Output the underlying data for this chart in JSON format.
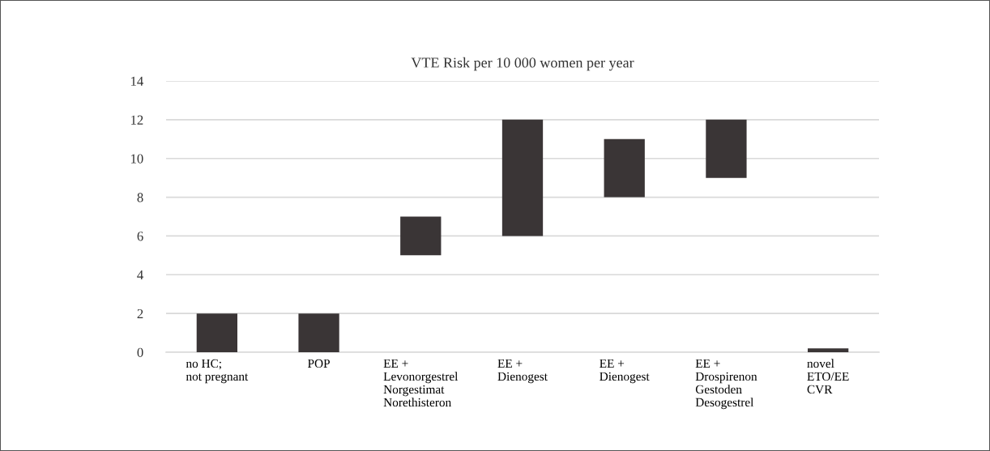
{
  "chart_data": {
    "type": "bar",
    "title": "VTE Risk per 10 000 women per year",
    "categories": [
      "no HC;\nnot pregnant",
      "POP",
      "EE +\nLevonorgestrel\nNorgestimat\nNorethisteron",
      "EE +\nDienogest",
      "EE +\nDienogest",
      "EE +\nDrospirenon\nGestoden\nDesogestrel",
      "novel\nETO/EE\nCVR"
    ],
    "base": [
      0,
      0,
      5,
      6,
      8,
      9,
      0
    ],
    "values": [
      2,
      2,
      2,
      6,
      3,
      3,
      0.2
    ],
    "color": "#3a3536",
    "ylim": [
      0,
      14
    ],
    "yticks": [
      0,
      2,
      4,
      6,
      8,
      10,
      12,
      14
    ],
    "grid": "y",
    "legend": false
  }
}
